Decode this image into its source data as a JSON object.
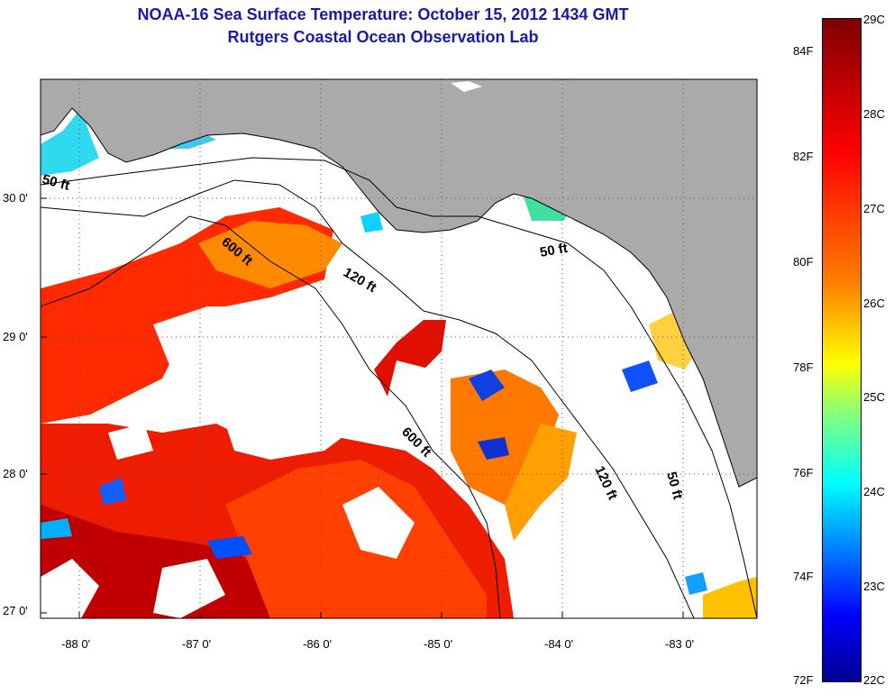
{
  "title": "NOAA-16 Sea Surface Temperature:  October 15, 2012 1434 GMT",
  "subtitle": "Rutgers Coastal Ocean Observation Lab",
  "lat_labels": [
    "30 0'",
    "29 0'",
    "28 0'",
    "27 0'"
  ],
  "lon_labels": [
    "-88 0'",
    "-87 0'",
    "-86 0'",
    "-85 0'",
    "-84 0'",
    "-83 0'"
  ],
  "depth_contours": {
    "c50a": "50 ft",
    "c50b": "50 ft",
    "c50c": "50 ft",
    "c120a": "120 ft",
    "c120b": "120 ft",
    "c600a": "600 ft",
    "c600b": "600 ft"
  },
  "colorbar": {
    "fahrenheit": [
      "84F",
      "82F",
      "80F",
      "78F",
      "76F",
      "74F",
      "72F"
    ],
    "celsius": [
      "29C",
      "28C",
      "27C",
      "26C",
      "25C",
      "24C",
      "23C",
      "22C"
    ],
    "range_c": [
      22,
      29
    ],
    "range_f": [
      72,
      84
    ]
  },
  "colors": {
    "title": "#1a1aa8",
    "land": "#aaaaaa",
    "cloud": "#ffffff",
    "warm": "#ff3000",
    "cool": "#00a0ff"
  }
}
